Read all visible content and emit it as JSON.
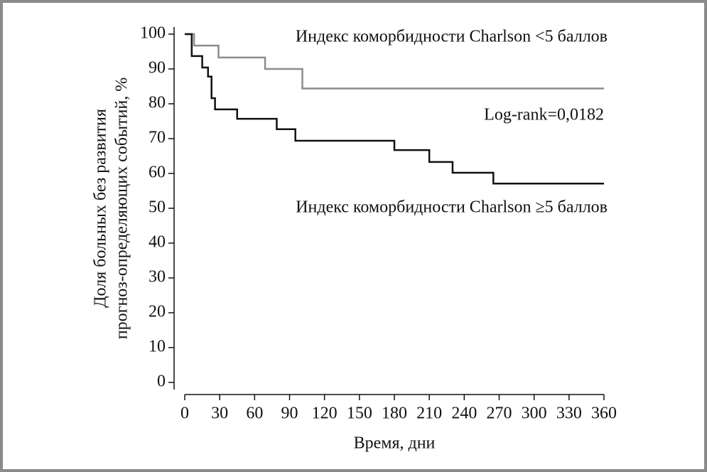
{
  "chart_data": {
    "type": "step",
    "ylabel": [
      "Доля больных без развития",
      "прогноз-определяющих событий, %"
    ],
    "xlabel": "Время, дни",
    "annotation": "Log-rank=0,0182",
    "xlim": [
      0,
      360
    ],
    "xticks": [
      0,
      30,
      60,
      90,
      120,
      150,
      180,
      210,
      240,
      270,
      300,
      330,
      360
    ],
    "ylim": [
      0,
      100
    ],
    "yticks": [
      0,
      10,
      20,
      30,
      40,
      50,
      60,
      70,
      80,
      90,
      100
    ],
    "series": [
      {
        "name": "Индекс коморбидности Charlson <5 баллов",
        "color": "#8c8c8c",
        "x": [
          0,
          8,
          29,
          69,
          101,
          360
        ],
        "values": [
          100,
          96.7,
          93.3,
          90,
          84.4,
          84.4
        ]
      },
      {
        "name": "Индекс коморбидности Charlson ≥5 баллов",
        "color": "#111111",
        "x": [
          0,
          6,
          15,
          20,
          23,
          26,
          45,
          79,
          95,
          180,
          210,
          230,
          265,
          360
        ],
        "values": [
          100,
          93.7,
          90.4,
          87.8,
          81.6,
          78.4,
          75.7,
          72.7,
          69.4,
          66.7,
          63.3,
          60.2,
          57.1,
          57.1
        ]
      }
    ]
  }
}
